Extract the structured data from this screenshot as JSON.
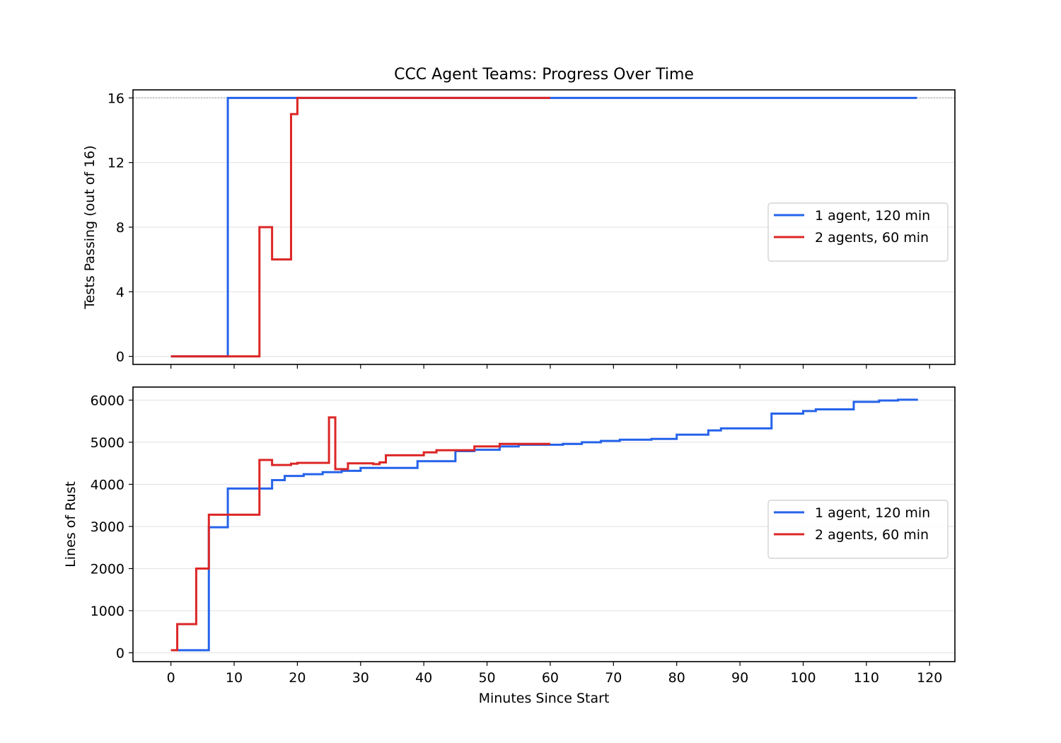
{
  "figure": {
    "title": "CCC Agent Teams: Progress Over Time",
    "xlabel": "Minutes Since Start"
  },
  "colors": {
    "one_agent": "#2563eb",
    "two_agents": "#dc2626",
    "grid": "#e5e5e5",
    "reference_line": "#aaaaaa"
  },
  "chart_data": [
    {
      "type": "line",
      "step": true,
      "ylabel": "Tests Passing (out of 16)",
      "xlim": [
        -6,
        124
      ],
      "ylim": [
        -0.5,
        16.5
      ],
      "xticks": [
        0,
        10,
        20,
        30,
        40,
        50,
        60,
        70,
        80,
        90,
        100,
        110,
        120
      ],
      "yticks": [
        0,
        4,
        8,
        12,
        16
      ],
      "reference_line": 16,
      "grid": "horizontal",
      "legend_position": "center-right",
      "series": [
        {
          "name": "1 agent, 120 min",
          "color_key": "one_agent",
          "points": [
            [
              0,
              0
            ],
            [
              9,
              16
            ],
            [
              118,
              16
            ]
          ]
        },
        {
          "name": "2 agents, 60 min",
          "color_key": "two_agents",
          "points": [
            [
              0,
              0
            ],
            [
              14,
              8
            ],
            [
              16,
              6
            ],
            [
              19,
              15
            ],
            [
              20,
              16
            ],
            [
              60,
              16
            ]
          ]
        }
      ]
    },
    {
      "type": "line",
      "step": true,
      "ylabel": "Lines of Rust",
      "xlim": [
        -6,
        124
      ],
      "ylim": [
        -210,
        6310
      ],
      "xticks": [
        0,
        10,
        20,
        30,
        40,
        50,
        60,
        70,
        80,
        90,
        100,
        110,
        120
      ],
      "yticks": [
        0,
        1000,
        2000,
        3000,
        4000,
        5000,
        6000
      ],
      "grid": "horizontal",
      "legend_position": "center-right",
      "series": [
        {
          "name": "1 agent, 120 min",
          "color_key": "one_agent",
          "points": [
            [
              1,
              60
            ],
            [
              6,
              2980
            ],
            [
              9,
              3900
            ],
            [
              16,
              4100
            ],
            [
              18,
              4200
            ],
            [
              21,
              4240
            ],
            [
              24,
              4290
            ],
            [
              27,
              4320
            ],
            [
              30,
              4390
            ],
            [
              39,
              4550
            ],
            [
              45,
              4790
            ],
            [
              48,
              4820
            ],
            [
              52,
              4900
            ],
            [
              55,
              4940
            ],
            [
              62,
              4960
            ],
            [
              65,
              5000
            ],
            [
              68,
              5030
            ],
            [
              71,
              5060
            ],
            [
              76,
              5080
            ],
            [
              80,
              5180
            ],
            [
              85,
              5280
            ],
            [
              87,
              5330
            ],
            [
              95,
              5680
            ],
            [
              100,
              5740
            ],
            [
              102,
              5780
            ],
            [
              108,
              5960
            ],
            [
              112,
              5990
            ],
            [
              115,
              6010
            ],
            [
              118,
              6030
            ]
          ]
        },
        {
          "name": "2 agents, 60 min",
          "color_key": "two_agents",
          "points": [
            [
              0,
              60
            ],
            [
              1,
              680
            ],
            [
              4,
              2000
            ],
            [
              6,
              3280
            ],
            [
              14,
              4580
            ],
            [
              16,
              4460
            ],
            [
              19,
              4490
            ],
            [
              20,
              4510
            ],
            [
              25,
              5590
            ],
            [
              26,
              4360
            ],
            [
              28,
              4500
            ],
            [
              32,
              4480
            ],
            [
              33,
              4520
            ],
            [
              34,
              4690
            ],
            [
              40,
              4760
            ],
            [
              42,
              4810
            ],
            [
              48,
              4900
            ],
            [
              52,
              4960
            ],
            [
              60,
              4960
            ]
          ]
        }
      ]
    }
  ]
}
